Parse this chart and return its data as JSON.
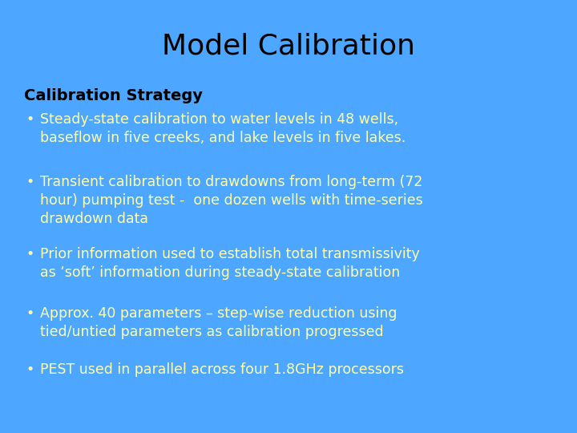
{
  "title": "Model Calibration",
  "title_fontsize": 26,
  "title_color": "#000000",
  "background_color": "#4da6ff",
  "section_header": "Calibration Strategy",
  "section_header_fontsize": 14,
  "section_header_color": "#000000",
  "bullet_color": "#ffffaa",
  "bullet_fontsize": 12.5,
  "bullets": [
    "Steady-state calibration to water levels in 48 wells,\nbaseflow in five creeks, and lake levels in five lakes.",
    "Transient calibration to drawdowns from long-term (72\nhour) pumping test -  one dozen wells with time-series\ndrawdown data",
    "Prior information used to establish total transmissivity\nas ‘soft’ information during steady-state calibration",
    "Approx. 40 parameters – step-wise reduction using\ntied/untied parameters as calibration progressed",
    "PEST used in parallel across four 1.8GHz processors"
  ]
}
